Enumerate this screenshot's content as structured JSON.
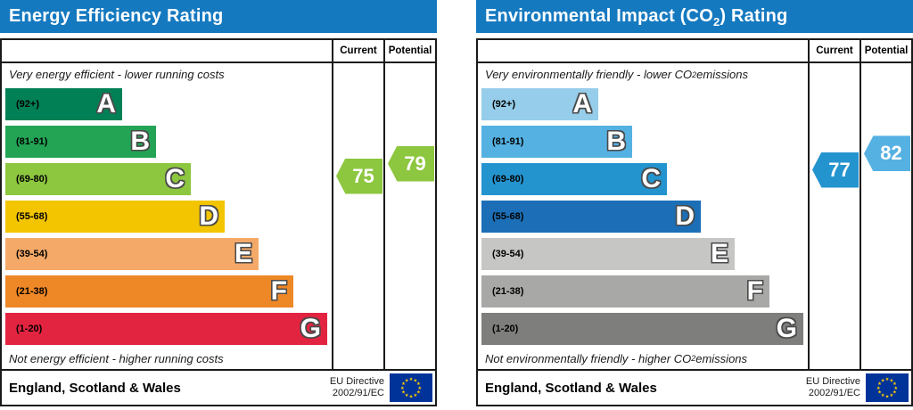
{
  "colors": {
    "header": "#1579c0",
    "border": "#1a1a1a",
    "flag_bg": "#003399",
    "flag_star": "#ffcc00"
  },
  "panels": [
    {
      "title": {
        "pre": "Energy Efficiency Rating",
        "sub": "",
        "post": ""
      },
      "columns": {
        "current": "Current",
        "potential": "Potential"
      },
      "caption_top": {
        "pre": "Very energy efficient - lower running costs",
        "sub": "",
        "post": ""
      },
      "caption_bottom": {
        "pre": "Not energy efficient - higher running costs",
        "sub": "",
        "post": ""
      },
      "bands": [
        {
          "letter": "A",
          "range": "(92+)",
          "low": 92,
          "high": 100,
          "color": "#008054"
        },
        {
          "letter": "B",
          "range": "(81-91)",
          "low": 81,
          "high": 91,
          "color": "#23a455"
        },
        {
          "letter": "C",
          "range": "(69-80)",
          "low": 69,
          "high": 80,
          "color": "#8dc63f"
        },
        {
          "letter": "D",
          "range": "(55-68)",
          "low": 55,
          "high": 68,
          "color": "#f2c500"
        },
        {
          "letter": "E",
          "range": "(39-54)",
          "low": 39,
          "high": 54,
          "color": "#f4a968"
        },
        {
          "letter": "F",
          "range": "(21-38)",
          "low": 21,
          "high": 38,
          "color": "#ee8726"
        },
        {
          "letter": "G",
          "range": "(1-20)",
          "low": 1,
          "high": 20,
          "color": "#e32440"
        }
      ],
      "current": {
        "value": 75,
        "color": "#8dc63f"
      },
      "potential": {
        "value": 79,
        "color": "#8dc63f"
      },
      "footer": {
        "region": "England, Scotland & Wales",
        "directive_line1": "EU Directive",
        "directive_line2": "2002/91/EC"
      }
    },
    {
      "title": {
        "pre": "Environmental Impact (CO",
        "sub": "2",
        "post": ") Rating"
      },
      "columns": {
        "current": "Current",
        "potential": "Potential"
      },
      "caption_top": {
        "pre": "Very environmentally friendly - lower CO",
        "sub": "2",
        "post": " emissions"
      },
      "caption_bottom": {
        "pre": "Not environmentally friendly - higher CO",
        "sub": "2",
        "post": " emissions"
      },
      "bands": [
        {
          "letter": "A",
          "range": "(92+)",
          "low": 92,
          "high": 100,
          "color": "#95cdea"
        },
        {
          "letter": "B",
          "range": "(81-91)",
          "low": 81,
          "high": 91,
          "color": "#55b1e2"
        },
        {
          "letter": "C",
          "range": "(69-80)",
          "low": 69,
          "high": 80,
          "color": "#2494cf"
        },
        {
          "letter": "D",
          "range": "(55-68)",
          "low": 55,
          "high": 68,
          "color": "#1c6fb7"
        },
        {
          "letter": "E",
          "range": "(39-54)",
          "low": 39,
          "high": 54,
          "color": "#c6c6c4"
        },
        {
          "letter": "F",
          "range": "(21-38)",
          "low": 21,
          "high": 38,
          "color": "#a8a8a6"
        },
        {
          "letter": "G",
          "range": "(1-20)",
          "low": 1,
          "high": 20,
          "color": "#7e7e7c"
        }
      ],
      "current": {
        "value": 77,
        "color": "#2494cf"
      },
      "potential": {
        "value": 82,
        "color": "#55b1e2"
      },
      "footer": {
        "region": "England, Scotland & Wales",
        "directive_line1": "EU Directive",
        "directive_line2": "2002/91/EC"
      }
    }
  ],
  "chart_data": [
    {
      "type": "bar",
      "title": "Energy Efficiency Rating",
      "categories": [
        "A",
        "B",
        "C",
        "D",
        "E",
        "F",
        "G"
      ],
      "band_ranges": [
        "92+",
        "81-91",
        "69-80",
        "55-68",
        "39-54",
        "21-38",
        "1-20"
      ],
      "band_colors": [
        "#008054",
        "#23a455",
        "#8dc63f",
        "#f2c500",
        "#f4a968",
        "#ee8726",
        "#e32440"
      ],
      "current": 75,
      "potential": 79,
      "annotation_top": "Very energy efficient - lower running costs",
      "annotation_bottom": "Not energy efficient - higher running costs",
      "footer": "England, Scotland & Wales | EU Directive 2002/91/EC"
    },
    {
      "type": "bar",
      "title": "Environmental Impact (CO2) Rating",
      "categories": [
        "A",
        "B",
        "C",
        "D",
        "E",
        "F",
        "G"
      ],
      "band_ranges": [
        "92+",
        "81-91",
        "69-80",
        "55-68",
        "39-54",
        "21-38",
        "1-20"
      ],
      "band_colors": [
        "#95cdea",
        "#55b1e2",
        "#2494cf",
        "#1c6fb7",
        "#c6c6c4",
        "#a8a8a6",
        "#7e7e7c"
      ],
      "current": 77,
      "potential": 82,
      "annotation_top": "Very environmentally friendly - lower CO2 emissions",
      "annotation_bottom": "Not environmentally friendly - higher CO2 emissions",
      "footer": "England, Scotland & Wales | EU Directive 2002/91/EC"
    }
  ]
}
